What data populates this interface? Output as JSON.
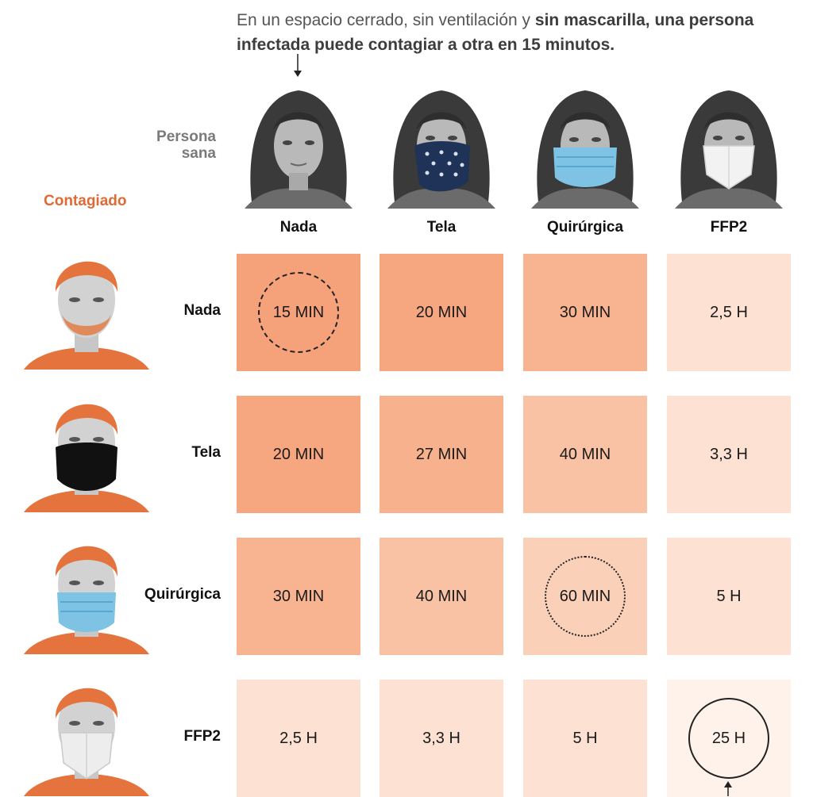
{
  "intro": {
    "lead": "En un espacio cerrado, sin ventilación y ",
    "bold": "sin mascarilla, una persona infectada puede contagiar a otra en 15 minutos."
  },
  "labels": {
    "persona_sana": "Persona sana",
    "contagiado": "Contagiado"
  },
  "colors": {
    "accent": "#e06a35",
    "scale_15": "#f5a27a",
    "scale_20": "#f6a77f",
    "scale_27": "#f7b18c",
    "scale_30": "#f8b491",
    "scale_40": "#f9c2a5",
    "scale_60": "#fad0b8",
    "scale_h": "#fde1d2",
    "scale_25h": "#fff2ea"
  },
  "chart_data": {
    "type": "table",
    "columns_title": "Persona sana",
    "rows_title": "Contagiado",
    "columns": [
      "Nada",
      "Tela",
      "Quirúrgica",
      "FFP2"
    ],
    "rows": [
      "Nada",
      "Tela",
      "Quirúrgica",
      "FFP2"
    ],
    "cells": [
      [
        "15 MIN",
        "20 MIN",
        "30 MIN",
        "2,5 H"
      ],
      [
        "20 MIN",
        "27 MIN",
        "40 MIN",
        "3,3 H"
      ],
      [
        "30 MIN",
        "40 MIN",
        "60 MIN",
        "5 H"
      ],
      [
        "2,5 H",
        "3,3 H",
        "5 H",
        "25 H"
      ]
    ],
    "minutes": [
      [
        15,
        20,
        30,
        150
      ],
      [
        20,
        27,
        40,
        198
      ],
      [
        30,
        40,
        60,
        300
      ],
      [
        150,
        198,
        300,
        1500
      ]
    ],
    "highlighted": [
      {
        "row": 0,
        "col": 0,
        "style": "dashed"
      },
      {
        "row": 2,
        "col": 2,
        "style": "dotted"
      },
      {
        "row": 3,
        "col": 3,
        "style": "solid"
      }
    ]
  }
}
